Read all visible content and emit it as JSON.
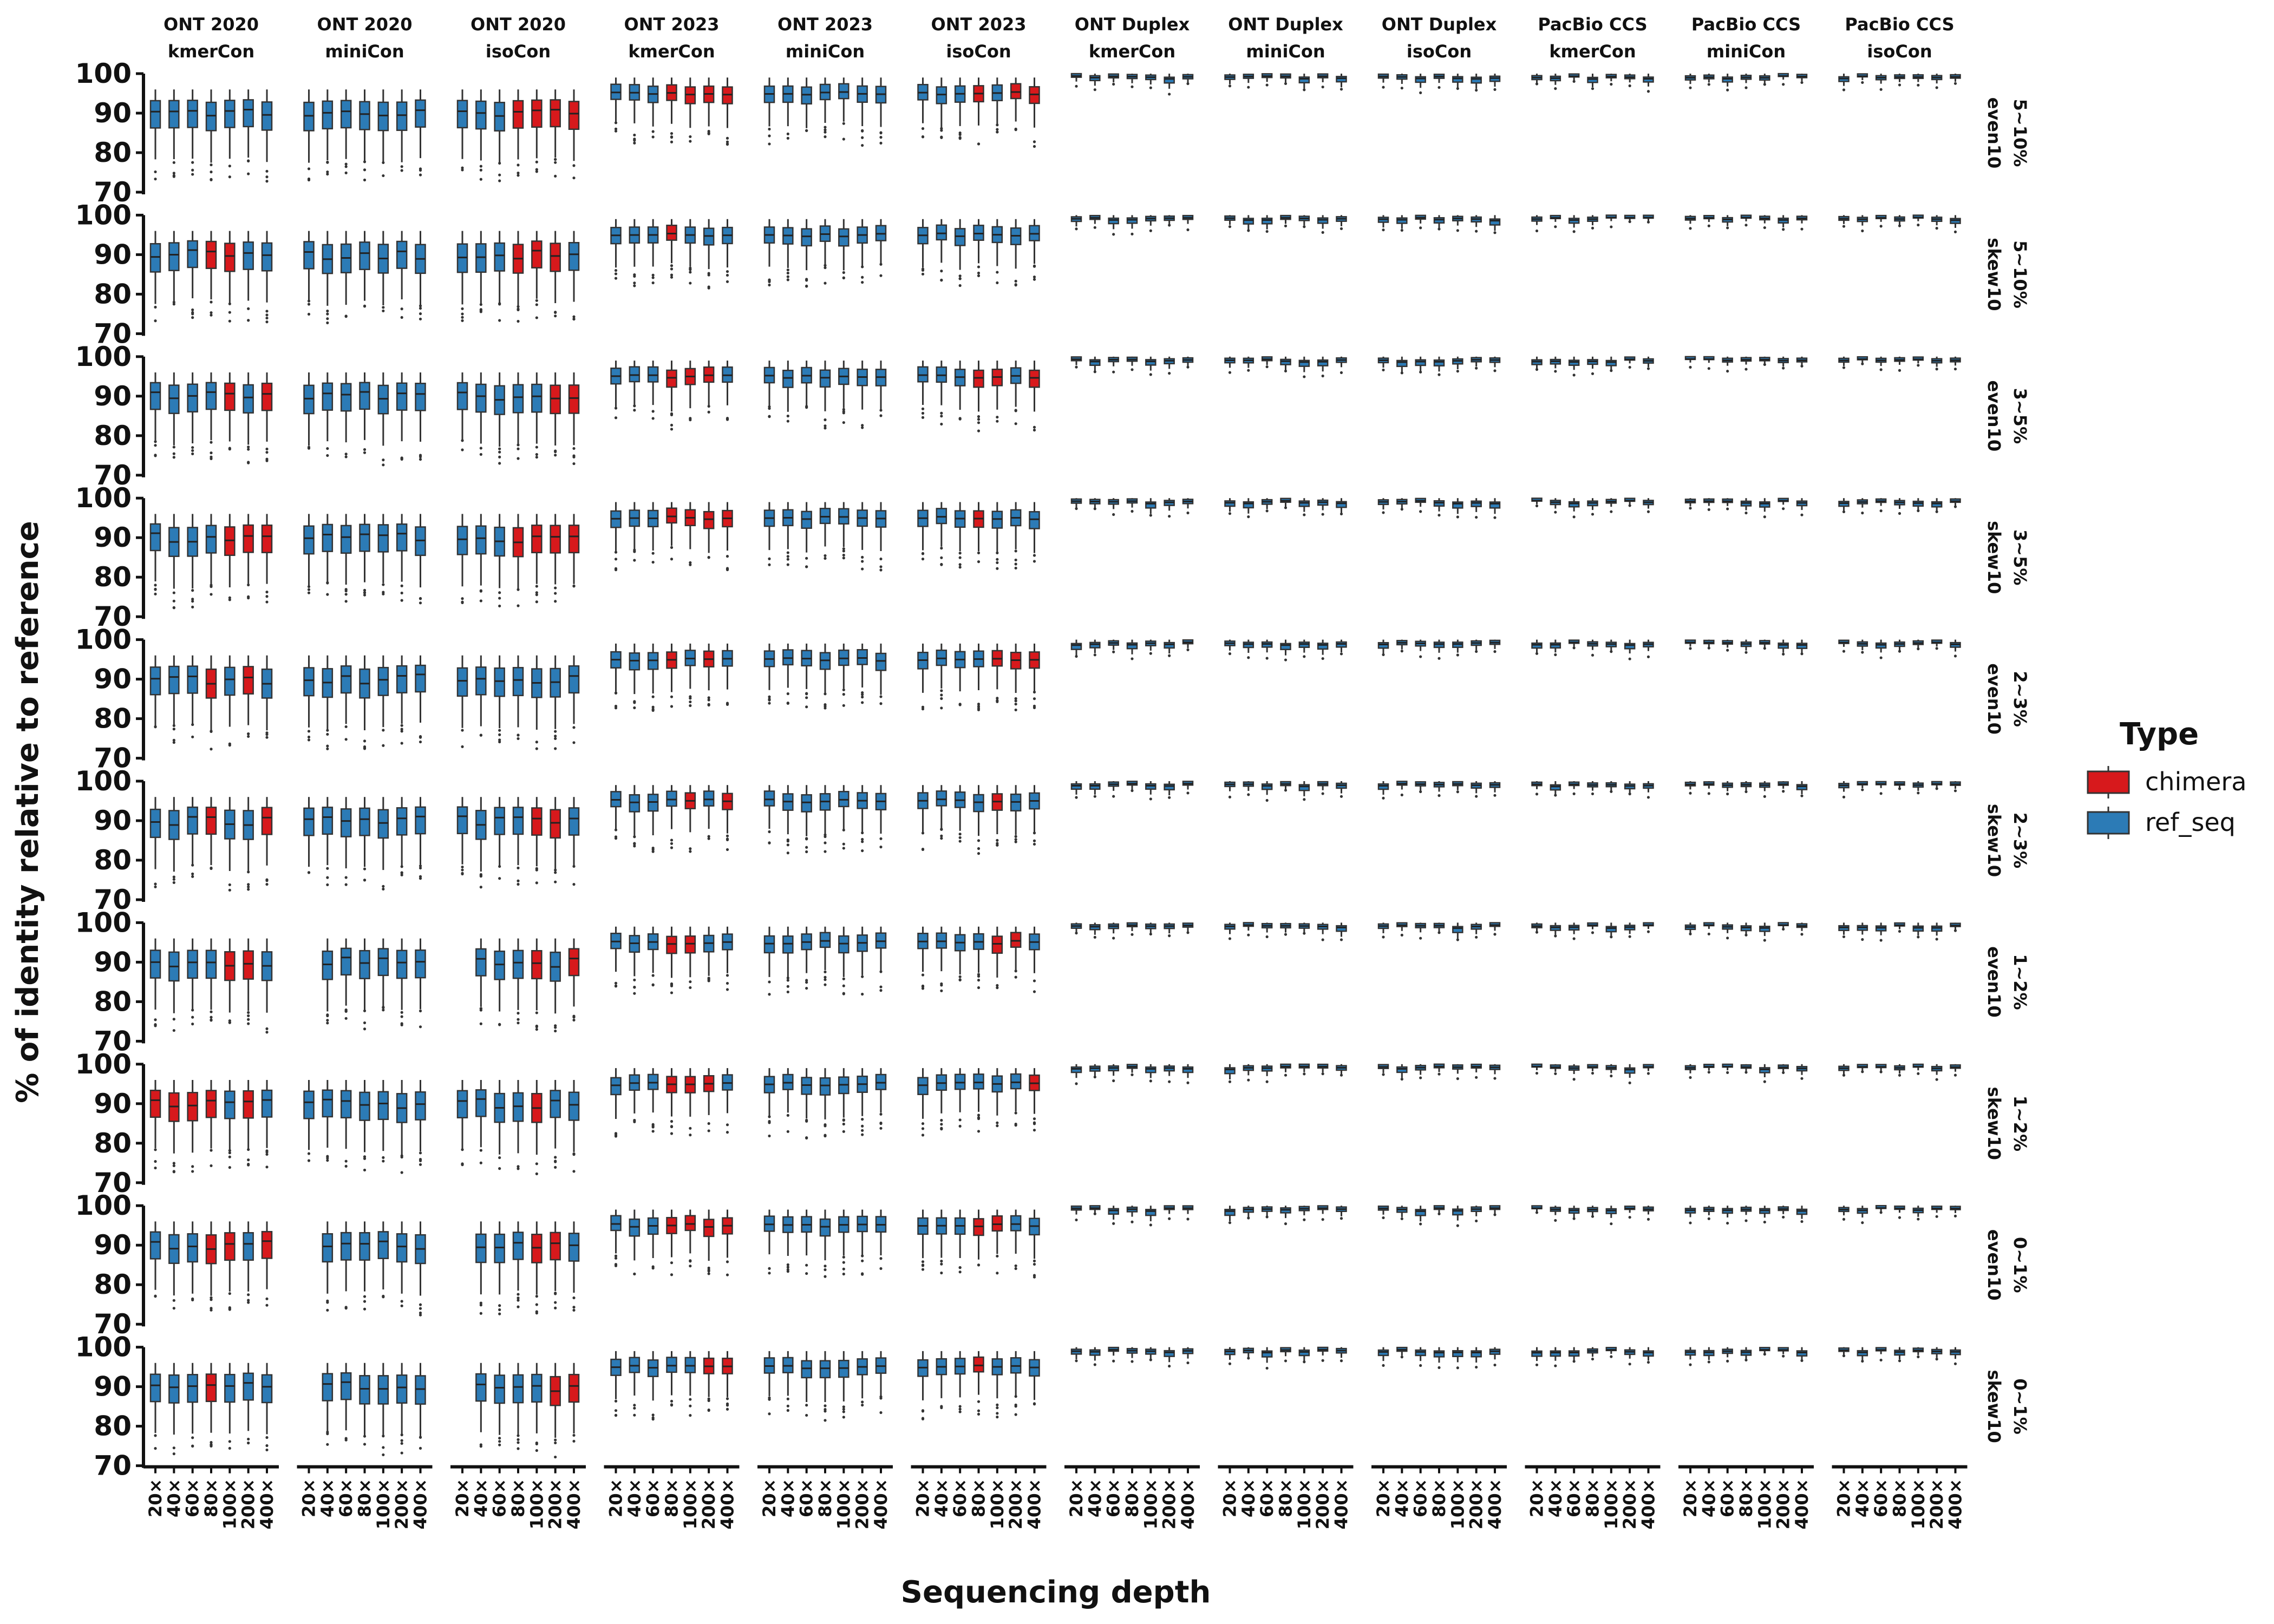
{
  "chart_data": {
    "type": "box",
    "ylabel": "% of identity relative to reference",
    "xlabel": "Sequencing depth",
    "ylim": [
      70,
      100
    ],
    "yticks": [
      "70",
      "80",
      "90",
      "100"
    ],
    "x_categories": [
      "20×",
      "40×",
      "60×",
      "80×",
      "100×",
      "200×",
      "400×"
    ],
    "columns": [
      {
        "line1": "ONT 2020",
        "line2": "kmerCon"
      },
      {
        "line1": "ONT 2020",
        "line2": "miniCon"
      },
      {
        "line1": "ONT 2020",
        "line2": "isoCon"
      },
      {
        "line1": "ONT 2023",
        "line2": "kmerCon"
      },
      {
        "line1": "ONT 2023",
        "line2": "miniCon"
      },
      {
        "line1": "ONT 2023",
        "line2": "isoCon"
      },
      {
        "line1": "ONT Duplex",
        "line2": "kmerCon"
      },
      {
        "line1": "ONT Duplex",
        "line2": "miniCon"
      },
      {
        "line1": "ONT Duplex",
        "line2": "isoCon"
      },
      {
        "line1": "PacBio CCS",
        "line2": "kmerCon"
      },
      {
        "line1": "PacBio CCS",
        "line2": "miniCon"
      },
      {
        "line1": "PacBio CCS",
        "line2": "isoCon"
      }
    ],
    "rows": [
      {
        "range": "5~10%",
        "dist": "even10"
      },
      {
        "range": "5~10%",
        "dist": "skew10"
      },
      {
        "range": "3~5%",
        "dist": "even10"
      },
      {
        "range": "3~5%",
        "dist": "skew10"
      },
      {
        "range": "2~3%",
        "dist": "even10"
      },
      {
        "range": "2~3%",
        "dist": "skew10"
      },
      {
        "range": "1~2%",
        "dist": "even10"
      },
      {
        "range": "1~2%",
        "dist": "skew10"
      },
      {
        "range": "0~1%",
        "dist": "even10"
      },
      {
        "range": "0~1%",
        "dist": "skew10"
      }
    ],
    "legend": {
      "title": "Type",
      "placement": "right",
      "entries": [
        {
          "label": "chimera",
          "color": "#d7191c"
        },
        {
          "label": "ref_seq",
          "color": "#2c7bb6"
        }
      ]
    },
    "platform_summary": [
      {
        "platform": "ONT 2020",
        "approx_median": 90,
        "box_low": 86,
        "box_high": 93,
        "whisker_low": 78,
        "whisker_high": 96
      },
      {
        "platform": "ONT 2023",
        "approx_median": 95,
        "box_low": 93,
        "box_high": 97,
        "whisker_low": 87,
        "whisker_high": 99
      },
      {
        "platform": "ONT Duplex",
        "approx_median": 99,
        "box_low": 98.3,
        "box_high": 99.5,
        "whisker_low": 97,
        "whisker_high": 100
      },
      {
        "platform": "PacBio CCS",
        "approx_median": 99,
        "box_low": 98.5,
        "box_high": 99.5,
        "whisker_low": 97.5,
        "whisker_high": 100
      }
    ]
  },
  "colors": {
    "chimera": "#d7191c",
    "ref_seq": "#2c7bb6",
    "axis": "#111111"
  }
}
